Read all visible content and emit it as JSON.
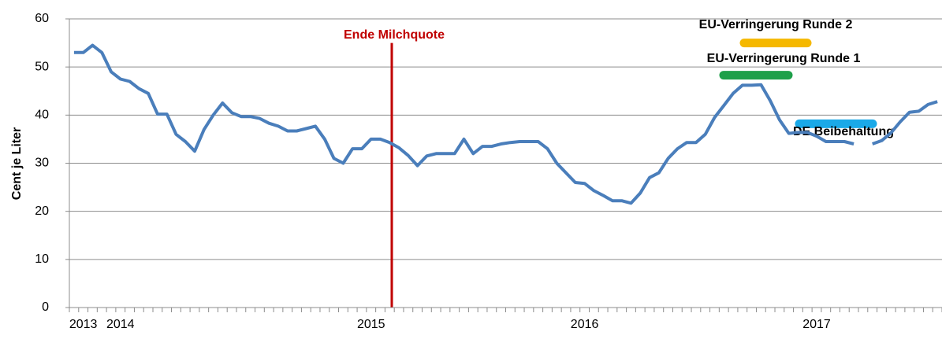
{
  "chart_data": {
    "type": "line",
    "ylabel": "Cent je Liter",
    "categories": [
      null,
      "2013",
      null,
      null,
      null,
      "2014",
      null,
      null,
      null,
      null,
      null,
      null,
      null,
      null,
      null,
      null,
      null,
      null,
      null,
      null,
      null,
      null,
      null,
      null,
      null,
      null,
      null,
      null,
      null,
      null,
      null,
      null,
      "2015",
      null,
      null,
      null,
      null,
      null,
      null,
      null,
      null,
      null,
      null,
      null,
      null,
      null,
      null,
      null,
      null,
      null,
      null,
      null,
      null,
      null,
      null,
      "2016",
      null,
      null,
      null,
      null,
      null,
      null,
      null,
      null,
      null,
      null,
      null,
      null,
      null,
      null,
      null,
      null,
      null,
      null,
      null,
      null,
      null,
      null,
      null,
      null,
      "2017",
      null,
      null,
      null,
      null,
      null,
      null,
      null,
      null,
      null,
      null,
      null,
      null,
      null
    ],
    "series": [
      {
        "color": "#4a7ebb",
        "values": [
          53,
          53,
          54.5,
          53,
          49,
          47.5,
          47,
          45.5,
          44.5,
          40.2,
          40.2,
          36,
          34.5,
          32.5,
          37,
          40,
          42.5,
          40.5,
          39.7,
          39.7,
          39.3,
          38.3,
          37.7,
          36.7,
          36.7,
          37.2,
          37.7,
          35,
          31,
          30,
          33,
          33,
          35,
          35,
          34.3,
          33.2,
          31.6,
          29.5,
          31.5,
          32,
          32,
          32,
          35,
          32,
          33.5,
          33.5,
          34,
          34.3,
          34.5,
          34.5,
          34.5,
          33,
          30,
          28,
          26,
          25.8,
          24.3,
          23.3,
          22.2,
          22.2,
          21.7,
          23.8,
          27,
          28,
          31,
          33,
          34.3,
          34.3,
          36,
          39.5,
          42,
          44.5,
          46.2,
          46.2,
          46.3,
          43,
          39,
          36.2,
          36.4,
          36.4,
          35.6,
          34.5,
          34.5,
          34.5,
          34,
          null,
          34,
          34.7,
          36.3,
          38.6,
          40.6,
          40.8,
          42.2,
          42.8
        ]
      }
    ],
    "ylim": [
      0,
      60
    ],
    "yticks": [
      0,
      10,
      20,
      30,
      40,
      50,
      60
    ],
    "grid": true,
    "annotations": [
      {
        "text": "Ende Milchquote",
        "color": "#c00000",
        "y": 55
      },
      {
        "text": "EU-Verringerung Runde 2",
        "color": "#f5b800",
        "y": 55
      },
      {
        "text": "EU-Verringerung Runde 1",
        "color": "#1ea04a",
        "y": 48.3
      },
      {
        "text": "DE Beibehaltung",
        "color": "#1aa9e8",
        "y": 38.2
      }
    ]
  }
}
